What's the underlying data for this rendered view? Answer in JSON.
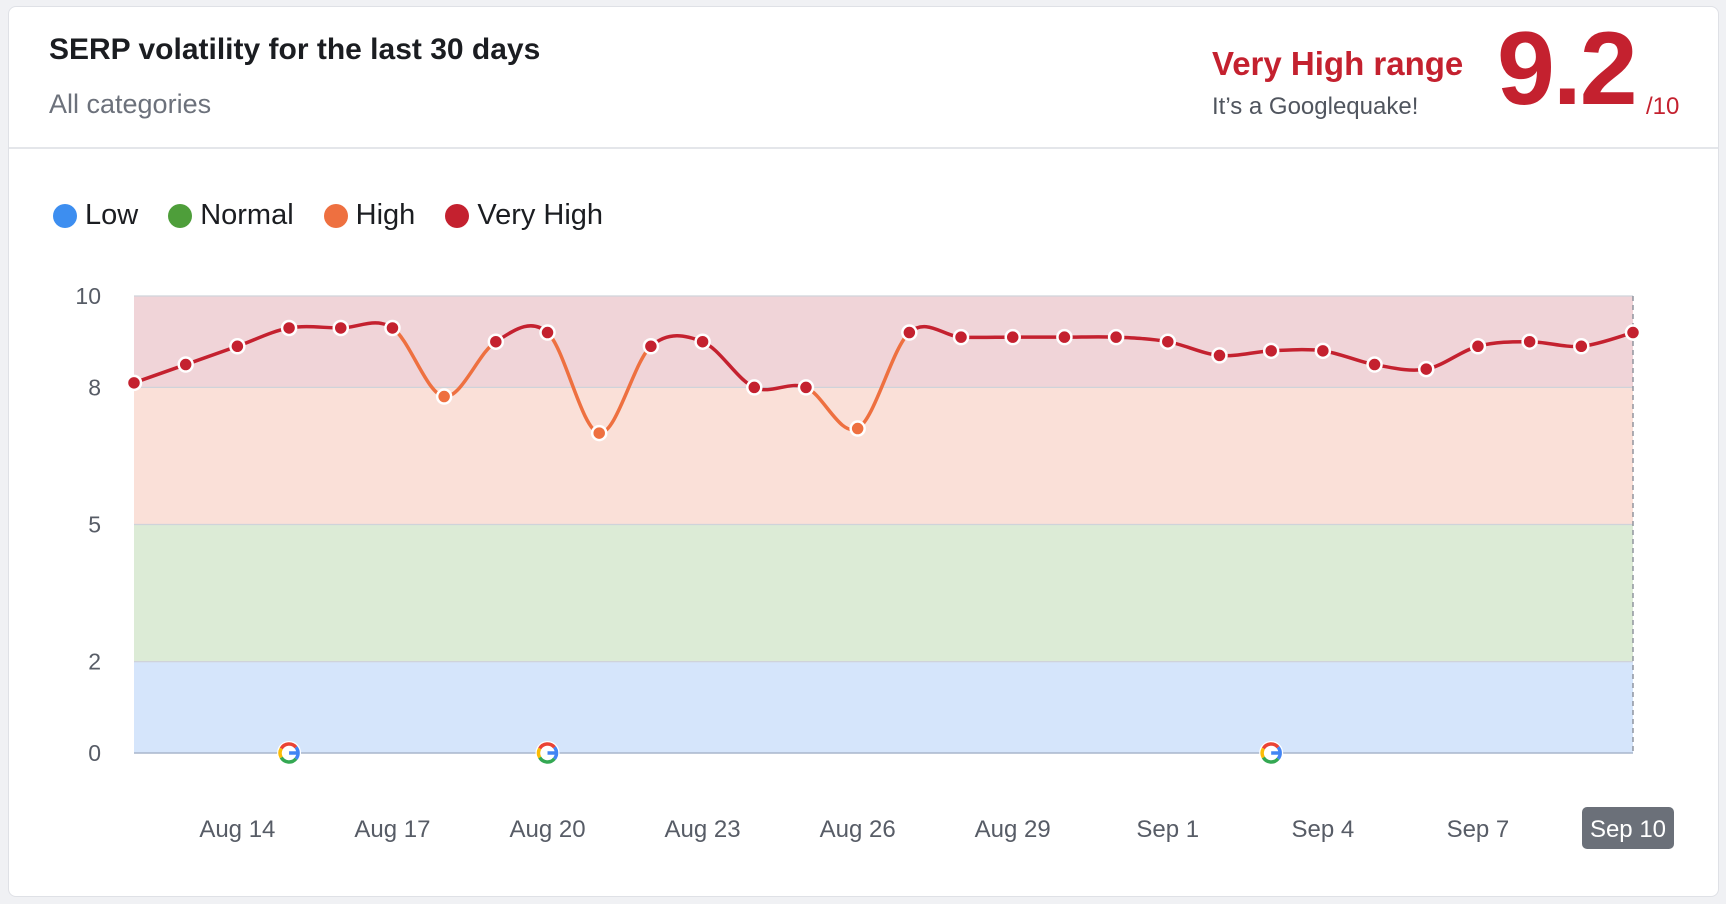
{
  "header": {
    "title": "SERP volatility for the last 30 days",
    "subtitle": "All categories",
    "range_label": "Very High range",
    "range_sub": "It’s a Googlequake!",
    "score": "9.2",
    "score_max": "/10"
  },
  "legend": [
    {
      "label": "Low",
      "color": "#3d8ef0"
    },
    {
      "label": "Normal",
      "color": "#4e9e3a"
    },
    {
      "label": "High",
      "color": "#ee7040"
    },
    {
      "label": "Very High",
      "color": "#c4212f"
    }
  ],
  "chart_data": {
    "type": "line",
    "ylim": [
      0,
      10
    ],
    "y_ticks": [
      0,
      2,
      5,
      8,
      10
    ],
    "bands": [
      {
        "name": "Low",
        "from": 0,
        "to": 2,
        "color": "#d5e5fb"
      },
      {
        "name": "Normal",
        "from": 2,
        "to": 5,
        "color": "#dcebd6"
      },
      {
        "name": "High",
        "from": 5,
        "to": 8,
        "color": "#fae0d8"
      },
      {
        "name": "Very High",
        "from": 8,
        "to": 10,
        "color": "#f0d4d8"
      }
    ],
    "x": [
      "Aug 12",
      "Aug 13",
      "Aug 14",
      "Aug 15",
      "Aug 16",
      "Aug 17",
      "Aug 18",
      "Aug 19",
      "Aug 20",
      "Aug 21",
      "Aug 22",
      "Aug 23",
      "Aug 24",
      "Aug 25",
      "Aug 26",
      "Aug 27",
      "Aug 28",
      "Aug 29",
      "Aug 30",
      "Aug 31",
      "Sep 1",
      "Sep 2",
      "Sep 3",
      "Sep 4",
      "Sep 5",
      "Sep 6",
      "Sep 7",
      "Sep 8",
      "Sep 9",
      "Sep 10"
    ],
    "values": [
      8.1,
      8.5,
      8.9,
      9.3,
      9.3,
      9.3,
      7.8,
      9.0,
      9.2,
      7.0,
      8.9,
      9.0,
      8.0,
      8.0,
      7.1,
      9.2,
      9.1,
      9.1,
      9.1,
      9.1,
      9.0,
      8.7,
      8.8,
      8.8,
      8.5,
      8.4,
      8.9,
      9.0,
      8.9,
      9.2
    ],
    "x_tick_labels": [
      "Aug 14",
      "Aug 17",
      "Aug 20",
      "Aug 23",
      "Aug 26",
      "Aug 29",
      "Sep 1",
      "Sep 4",
      "Sep 7",
      "Sep 10"
    ],
    "highlighted_tick": "Sep 10",
    "google_update_markers": [
      "Aug 15",
      "Aug 20",
      "Sep 3"
    ],
    "level_colors": {
      "Low": "#3d8ef0",
      "Normal": "#4e9e3a",
      "High": "#ee7040",
      "Very High": "#c4212f"
    }
  }
}
